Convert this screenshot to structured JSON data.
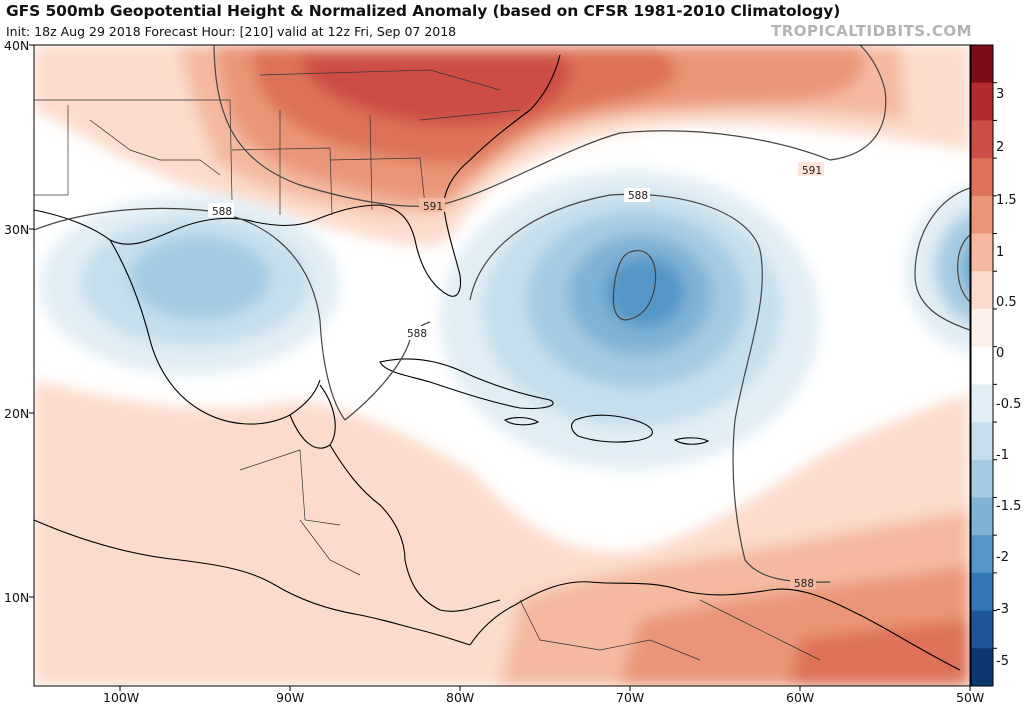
{
  "header": {
    "title": "GFS 500mb Geopotential Height & Normalized Anomaly (based on CFSR 1981-2010 Climatology)",
    "subtitle": "Init: 18z Aug 29 2018   Forecast Hour: [210]   valid at 12z Fri, Sep 07 2018",
    "source": "TROPICALTIDBITS.COM"
  },
  "axes": {
    "lat_labels": [
      "40N",
      "30N",
      "20N",
      "10N"
    ],
    "lon_labels": [
      "100W",
      "90W",
      "80W",
      "70W",
      "60W",
      "50W"
    ]
  },
  "contours": {
    "labels": [
      "591",
      "591",
      "588",
      "588",
      "588",
      "588"
    ]
  },
  "colorbar": {
    "labels": [
      "3",
      "2",
      "1.5",
      "1",
      "0.5",
      "0",
      "-0.5",
      "-1",
      "-1.5",
      "-2",
      "-3",
      "-5"
    ],
    "colors": [
      "#7d0e16",
      "#b52a2e",
      "#cd4e45",
      "#dd7259",
      "#ea9577",
      "#f4b9a0",
      "#fbdccc",
      "#fdf0ea",
      "#ffffff",
      "#e2eef5",
      "#c6dfec",
      "#a4cbe2",
      "#7fb2d5",
      "#5596c6",
      "#3376b5",
      "#1d5597",
      "#0c3770"
    ],
    "accent_blue": "#4f8fc4",
    "accent_red": "#d35a47"
  }
}
